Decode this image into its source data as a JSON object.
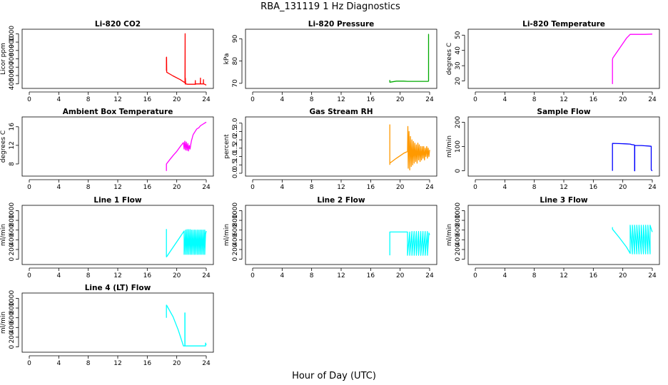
{
  "figure": {
    "title": "RBA_131119  1 Hz Diagnostics",
    "xlabel": "Hour of Day (UTC)"
  },
  "chart_data": [
    {
      "type": "line",
      "title": "Li-820 CO2",
      "ylabel": "Licor ppm",
      "color": "#ff0000",
      "xlim": [
        0,
        24
      ],
      "xticks": [
        0,
        4,
        8,
        12,
        16,
        20,
        24
      ],
      "ylim": [
        380,
        1020
      ],
      "yticks": [
        400,
        500,
        600,
        700,
        800,
        900,
        1000
      ],
      "series": [
        {
          "name": "CO2",
          "x": [
            18.6,
            18.6,
            18.62,
            18.62,
            18.64,
            19.5,
            20.5,
            21.0,
            21.12,
            21.14,
            21.14,
            21.16,
            21.16,
            21.2,
            21.5,
            22.0,
            22.5,
            22.52,
            22.52,
            22.54,
            22.6,
            23.2,
            23.22,
            23.22,
            23.24,
            23.5,
            23.6,
            23.62,
            23.62,
            23.64,
            23.8,
            24.0
          ],
          "y": [
            720,
            560,
            560,
            720,
            540,
            495,
            450,
            420,
            420,
            1000,
            400,
            400,
            470,
            400,
            395,
            395,
            395,
            440,
            395,
            395,
            400,
            400,
            470,
            400,
            400,
            400,
            400,
            450,
            405,
            400,
            395,
            385
          ]
        }
      ]
    },
    {
      "type": "line",
      "title": "Li-820 Pressure",
      "ylabel": "kPa",
      "color": "#00aa00",
      "xlim": [
        0,
        24
      ],
      "xticks": [
        0,
        4,
        8,
        12,
        16,
        20,
        24
      ],
      "ylim": [
        69,
        93
      ],
      "yticks": [
        70,
        80,
        90
      ],
      "series": [
        {
          "name": "Pressure",
          "x": [
            18.6,
            18.6,
            19.5,
            20.5,
            21.0,
            22.0,
            23.0,
            23.8,
            23.85,
            23.85,
            23.9
          ],
          "y": [
            71.5,
            70.5,
            71.0,
            71.0,
            70.9,
            70.9,
            70.9,
            70.9,
            71.0,
            92.0,
            92.0
          ]
        }
      ]
    },
    {
      "type": "line",
      "title": "Li-820 Temperature",
      "ylabel": "degrees C",
      "color": "#ff00ff",
      "xlim": [
        0,
        24
      ],
      "xticks": [
        0,
        4,
        8,
        12,
        16,
        20,
        24
      ],
      "ylim": [
        17,
        52
      ],
      "yticks": [
        20,
        30,
        40,
        50
      ],
      "series": [
        {
          "name": "Temperature",
          "x": [
            18.6,
            18.6,
            18.65,
            19.5,
            20.5,
            21.0,
            22.0,
            23.0,
            24.0
          ],
          "y": [
            18,
            34,
            35,
            41,
            48,
            50.5,
            50.5,
            50.5,
            50.7
          ]
        }
      ]
    },
    {
      "type": "line",
      "title": "Ambient Box Temperature",
      "ylabel": "degrees C",
      "color": "#ff00ff",
      "xlim": [
        0,
        24
      ],
      "xticks": [
        0,
        4,
        8,
        12,
        16,
        20,
        24
      ],
      "ylim": [
        6,
        17.5
      ],
      "yticks": [
        8,
        12,
        16
      ],
      "series": [
        {
          "name": "Box Temperature",
          "x": [
            18.6,
            18.6,
            19.0,
            19.5,
            20.0,
            20.5,
            20.9,
            21.0,
            21.1,
            21.2,
            21.3,
            21.4,
            21.5,
            21.6,
            21.7,
            21.8,
            21.9,
            22.0,
            22.1,
            22.2,
            22.3,
            22.5,
            22.7,
            23.0,
            23.2,
            23.5,
            23.8,
            24.0
          ],
          "y": [
            6.5,
            8.0,
            8.8,
            9.8,
            10.7,
            11.8,
            12.6,
            11.2,
            12.9,
            11.0,
            12.7,
            10.9,
            12.4,
            10.8,
            12.0,
            11.2,
            12.2,
            13.0,
            13.6,
            14.2,
            14.5,
            15.0,
            15.5,
            15.8,
            16.2,
            16.5,
            16.8,
            17.0
          ]
        }
      ]
    },
    {
      "type": "line",
      "title": "Gas Stream RH",
      "ylabel": "percent",
      "color": "#ff9900",
      "xlim": [
        0,
        24
      ],
      "xticks": [
        0,
        4,
        8,
        12,
        16,
        20,
        24
      ],
      "ylim": [
        0,
        3.2
      ],
      "yticks": [
        0.0,
        0.5,
        1.0,
        1.5,
        2.0,
        2.5,
        3.0
      ],
      "series": [
        {
          "name": "RH",
          "x": [
            18.6,
            18.6,
            18.6,
            19.5,
            20.5,
            21.0,
            21.05,
            21.1,
            21.2,
            21.3,
            21.4,
            21.5,
            21.6,
            21.7,
            21.8,
            21.9,
            22.0,
            22.1,
            22.2,
            22.3,
            22.4,
            22.5,
            22.6,
            22.7,
            22.8,
            22.9,
            23.0,
            23.1,
            23.2,
            23.3,
            23.4,
            23.5,
            23.6,
            23.7,
            23.8,
            23.9,
            24.0
          ],
          "y": [
            0.5,
            2.9,
            0.6,
            0.9,
            1.2,
            1.3,
            2.8,
            0.3,
            2.5,
            0.2,
            2.2,
            0.4,
            2.0,
            0.5,
            1.9,
            0.6,
            1.8,
            0.7,
            1.7,
            0.6,
            1.8,
            0.8,
            1.7,
            0.7,
            1.6,
            0.8,
            1.6,
            0.9,
            1.6,
            0.8,
            1.5,
            1.0,
            1.6,
            0.9,
            1.5,
            1.0,
            1.4
          ]
        }
      ]
    },
    {
      "type": "line",
      "title": "Sample Flow",
      "ylabel": "ml/min",
      "color": "#0000ff",
      "xlim": [
        0,
        24
      ],
      "xticks": [
        0,
        4,
        8,
        12,
        16,
        20,
        24
      ],
      "ylim": [
        -10,
        210
      ],
      "yticks": [
        0,
        100,
        200
      ],
      "series": [
        {
          "name": "Sample Flow",
          "x": [
            18.6,
            18.6,
            18.62,
            19.5,
            20.5,
            21.0,
            21.2,
            21.5,
            21.6,
            21.6,
            21.62,
            21.62,
            21.7,
            22.5,
            23.0,
            23.5,
            23.85,
            23.85,
            23.9,
            24.0
          ],
          "y": [
            0,
            113,
            113,
            112,
            111,
            110,
            108,
            107,
            105,
            0,
            0,
            105,
            104,
            104,
            103,
            102,
            101,
            5,
            2,
            0
          ]
        }
      ]
    },
    {
      "type": "line",
      "title": "Line 1 Flow",
      "ylabel": "ml/min",
      "color": "#00ffff",
      "xlim": [
        0,
        24
      ],
      "xticks": [
        0,
        4,
        8,
        12,
        16,
        20,
        24
      ],
      "ylim": [
        -50,
        1050
      ],
      "yticks": [
        0,
        200,
        400,
        600,
        800,
        1000
      ],
      "series": [
        {
          "name": "Line 1",
          "x": [
            18.6,
            18.6,
            18.62,
            21.0,
            21.0,
            21.2,
            21.2,
            21.4,
            21.4,
            21.6,
            21.6,
            21.8,
            21.8,
            22.0,
            22.0,
            22.2,
            22.2,
            22.4,
            22.4,
            22.6,
            22.6,
            22.8,
            22.8,
            23.0,
            23.0,
            23.2,
            23.2,
            23.4,
            23.4,
            23.6,
            23.6,
            23.8,
            23.8,
            23.9,
            24.0
          ],
          "y": [
            620,
            50,
            50,
            580,
            100,
            600,
            100,
            610,
            100,
            610,
            100,
            610,
            100,
            600,
            100,
            600,
            100,
            600,
            100,
            600,
            100,
            600,
            100,
            600,
            100,
            600,
            100,
            600,
            100,
            600,
            100,
            600,
            100,
            520,
            580
          ]
        }
      ]
    },
    {
      "type": "line",
      "title": "Line 2 Flow",
      "ylabel": "ml/min",
      "color": "#00ffff",
      "xlim": [
        0,
        24
      ],
      "xticks": [
        0,
        4,
        8,
        12,
        16,
        20,
        24
      ],
      "ylim": [
        -50,
        1050
      ],
      "yticks": [
        0,
        200,
        400,
        600,
        800,
        1000
      ],
      "series": [
        {
          "name": "Line 2",
          "x": [
            18.6,
            18.6,
            18.62,
            20.9,
            21.0,
            21.0,
            21.3,
            21.3,
            21.6,
            21.6,
            21.9,
            21.9,
            22.2,
            22.2,
            22.5,
            22.5,
            22.8,
            22.8,
            23.1,
            23.1,
            23.4,
            23.4,
            23.7,
            23.7,
            23.9,
            24.0
          ],
          "y": [
            80,
            560,
            560,
            560,
            560,
            80,
            560,
            80,
            570,
            80,
            570,
            80,
            570,
            80,
            570,
            80,
            570,
            80,
            570,
            80,
            570,
            80,
            570,
            80,
            540,
            500
          ]
        }
      ]
    },
    {
      "type": "line",
      "title": "Line 3 Flow",
      "ylabel": "ml/min",
      "color": "#00ffff",
      "xlim": [
        0,
        24
      ],
      "xticks": [
        0,
        4,
        8,
        12,
        16,
        20,
        24
      ],
      "ylim": [
        -50,
        1050
      ],
      "yticks": [
        0,
        200,
        400,
        600,
        800,
        1000
      ],
      "series": [
        {
          "name": "Line 3",
          "x": [
            18.6,
            18.6,
            18.7,
            19.5,
            20.5,
            21.0,
            21.0,
            21.3,
            21.3,
            21.6,
            21.6,
            21.9,
            21.9,
            22.2,
            22.2,
            22.5,
            22.5,
            22.8,
            22.8,
            23.1,
            23.1,
            23.4,
            23.4,
            23.7,
            23.7,
            23.9,
            24.0
          ],
          "y": [
            660,
            620,
            600,
            450,
            250,
            120,
            700,
            110,
            700,
            110,
            700,
            110,
            700,
            110,
            700,
            110,
            700,
            110,
            700,
            110,
            700,
            110,
            700,
            110,
            700,
            600,
            560
          ]
        }
      ]
    },
    {
      "type": "line",
      "title": "Line 4 (LT) Flow",
      "ylabel": "ml/min",
      "color": "#00ffff",
      "xlim": [
        0,
        24
      ],
      "xticks": [
        0,
        4,
        8,
        12,
        16,
        20,
        24
      ],
      "ylim": [
        -50,
        1050
      ],
      "yticks": [
        0,
        200,
        400,
        600,
        800,
        1000
      ],
      "series": [
        {
          "name": "Line 4",
          "x": [
            18.6,
            18.6,
            18.62,
            19.5,
            20.2,
            20.9,
            21.1,
            21.1,
            21.12,
            21.12,
            21.5,
            22.5,
            23.5,
            23.9,
            23.9,
            24.0
          ],
          "y": [
            600,
            860,
            860,
            620,
            350,
            20,
            20,
            700,
            700,
            20,
            20,
            20,
            20,
            20,
            80,
            40
          ]
        }
      ]
    }
  ]
}
